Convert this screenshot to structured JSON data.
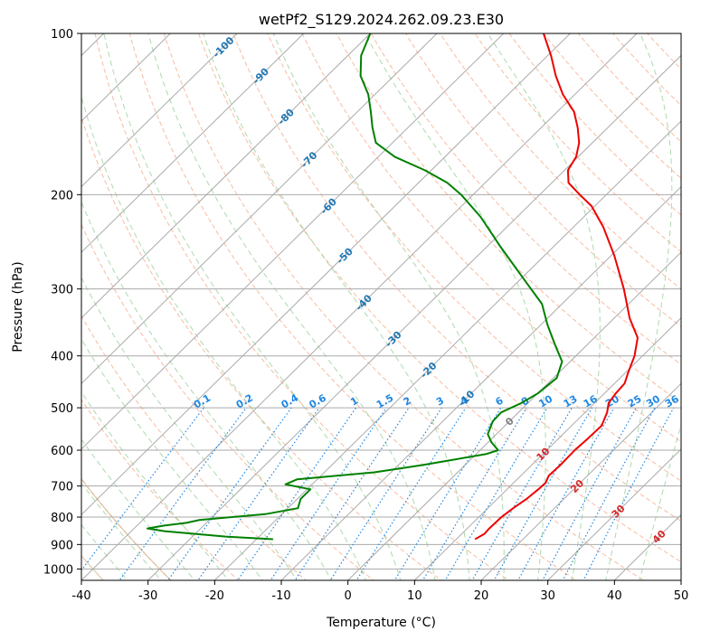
{
  "chart_data": {
    "type": "line",
    "chart_kind": "skew-T log-P",
    "title": "wetPf2_S129.2024.262.09.23.E30",
    "xlabel": "Temperature (°C)",
    "ylabel": "Pressure (hPa)",
    "xlim": [
      -40,
      50
    ],
    "ylim": [
      1050,
      100
    ],
    "y_scale": "log",
    "grid": true,
    "x_ticks": [
      -40,
      -30,
      -20,
      -10,
      0,
      10,
      20,
      30,
      40,
      50
    ],
    "y_ticks": [
      100,
      200,
      300,
      400,
      500,
      600,
      700,
      800,
      900,
      1000
    ],
    "colors": {
      "temperature": "#ee0000",
      "dewpoint": "#008000",
      "isotherm": "#aaaaaa",
      "dry_adiabat": "#f4a582",
      "moist_adiabat": "#9fd29f",
      "mixing_ratio": "#1e88e5",
      "isotherm_label": "#1f77b4",
      "warm_label": "#d62728",
      "zero_label": "#808080"
    },
    "series": [
      {
        "key": "temperature",
        "points": [
          {
            "p": 880,
            "t": 12.8
          },
          {
            "p": 860,
            "t": 13.4
          },
          {
            "p": 840,
            "t": 13.3
          },
          {
            "p": 800,
            "t": 13.4
          },
          {
            "p": 770,
            "t": 13.8
          },
          {
            "p": 740,
            "t": 14.4
          },
          {
            "p": 710,
            "t": 14.7
          },
          {
            "p": 690,
            "t": 14.8
          },
          {
            "p": 670,
            "t": 14.2
          },
          {
            "p": 640,
            "t": 14.3
          },
          {
            "p": 600,
            "t": 14.2
          },
          {
            "p": 570,
            "t": 14.4
          },
          {
            "p": 540,
            "t": 14.5
          },
          {
            "p": 510,
            "t": 13.3
          },
          {
            "p": 490,
            "t": 12.1
          },
          {
            "p": 470,
            "t": 11.7
          },
          {
            "p": 450,
            "t": 11.5
          },
          {
            "p": 430,
            "t": 10.4
          },
          {
            "p": 400,
            "t": 8.8
          },
          {
            "p": 370,
            "t": 6.5
          },
          {
            "p": 340,
            "t": 2.3
          },
          {
            "p": 300,
            "t": -3.0
          },
          {
            "p": 260,
            "t": -9.5
          },
          {
            "p": 230,
            "t": -15.5
          },
          {
            "p": 210,
            "t": -20.5
          },
          {
            "p": 200,
            "t": -24.0
          },
          {
            "p": 190,
            "t": -27.5
          },
          {
            "p": 180,
            "t": -29.5
          },
          {
            "p": 170,
            "t": -30.3
          },
          {
            "p": 160,
            "t": -32.0
          },
          {
            "p": 150,
            "t": -34.5
          },
          {
            "p": 140,
            "t": -37.5
          },
          {
            "p": 130,
            "t": -41.8
          },
          {
            "p": 120,
            "t": -45.7
          },
          {
            "p": 110,
            "t": -49.5
          },
          {
            "p": 100,
            "t": -54.0
          }
        ]
      },
      {
        "key": "dewpoint",
        "points": [
          {
            "p": 880,
            "t": -17.5
          },
          {
            "p": 870,
            "t": -25.0
          },
          {
            "p": 850,
            "t": -35.0
          },
          {
            "p": 840,
            "t": -38.0
          },
          {
            "p": 830,
            "t": -36.0
          },
          {
            "p": 820,
            "t": -33.0
          },
          {
            "p": 810,
            "t": -31.5
          },
          {
            "p": 790,
            "t": -22.5
          },
          {
            "p": 770,
            "t": -18.5
          },
          {
            "p": 740,
            "t": -19.5
          },
          {
            "p": 710,
            "t": -19.5
          },
          {
            "p": 695,
            "t": -24.0
          },
          {
            "p": 680,
            "t": -23.0
          },
          {
            "p": 660,
            "t": -12.5
          },
          {
            "p": 640,
            "t": -6.5
          },
          {
            "p": 610,
            "t": 1.5
          },
          {
            "p": 600,
            "t": 2.7
          },
          {
            "p": 580,
            "t": 0.5
          },
          {
            "p": 560,
            "t": -1.3
          },
          {
            "p": 530,
            "t": -2.5
          },
          {
            "p": 510,
            "t": -2.6
          },
          {
            "p": 490,
            "t": -1.0
          },
          {
            "p": 470,
            "t": 0.0
          },
          {
            "p": 440,
            "t": 0.5
          },
          {
            "p": 410,
            "t": -1.2
          },
          {
            "p": 380,
            "t": -5.0
          },
          {
            "p": 350,
            "t": -9.0
          },
          {
            "p": 320,
            "t": -13.0
          },
          {
            "p": 290,
            "t": -19.0
          },
          {
            "p": 250,
            "t": -28.0
          },
          {
            "p": 220,
            "t": -35.5
          },
          {
            "p": 200,
            "t": -41.8
          },
          {
            "p": 190,
            "t": -45.7
          },
          {
            "p": 180,
            "t": -51.0
          },
          {
            "p": 170,
            "t": -57.5
          },
          {
            "p": 160,
            "t": -62.5
          },
          {
            "p": 150,
            "t": -65.3
          },
          {
            "p": 140,
            "t": -68.0
          },
          {
            "p": 130,
            "t": -71.0
          },
          {
            "p": 120,
            "t": -75.0
          },
          {
            "p": 110,
            "t": -78.0
          },
          {
            "p": 100,
            "t": -80.0
          }
        ]
      }
    ],
    "isotherm_labels": [
      -100,
      -90,
      -80,
      -70,
      -60,
      -50,
      -40,
      -30,
      -20,
      -10,
      0,
      10,
      20,
      30,
      40
    ],
    "mixing_ratio_values": [
      0.1,
      0.2,
      0.4,
      0.6,
      1,
      1.5,
      2,
      3,
      4,
      6,
      8,
      10,
      13,
      16,
      20,
      25,
      30,
      36
    ],
    "mixing_ratio_labels": [
      "0.1",
      "0.2",
      "0.4",
      "0.6",
      "1",
      "1.5",
      "2",
      "3",
      "4",
      "6",
      "8",
      "10",
      "13",
      "16",
      "20",
      "25",
      "30",
      "36"
    ]
  }
}
